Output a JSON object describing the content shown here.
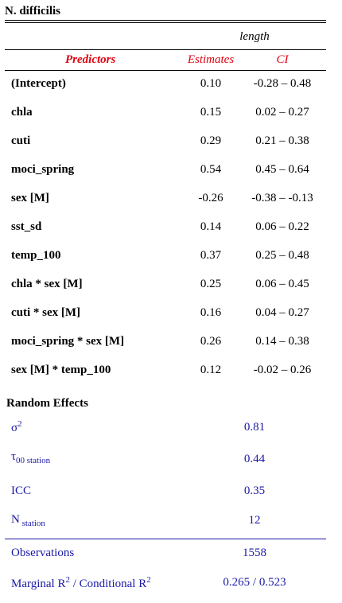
{
  "caption": "N. difficilis",
  "dependent_variable": "length",
  "headers": {
    "predictors": "Predictors",
    "estimates": "Estimates",
    "ci": "CI"
  },
  "rows": [
    {
      "predictor": "(Intercept)",
      "estimate": "0.10",
      "ci": "-0.28 – 0.48"
    },
    {
      "predictor": "chla",
      "estimate": "0.15",
      "ci": "0.02 – 0.27"
    },
    {
      "predictor": "cuti",
      "estimate": "0.29",
      "ci": "0.21 – 0.38"
    },
    {
      "predictor": "moci_spring",
      "estimate": "0.54",
      "ci": "0.45 – 0.64"
    },
    {
      "predictor": "sex [M]",
      "estimate": "-0.26",
      "ci": "-0.38 – -0.13"
    },
    {
      "predictor": "sst_sd",
      "estimate": "0.14",
      "ci": "0.06 – 0.22"
    },
    {
      "predictor": "temp_100",
      "estimate": "0.37",
      "ci": "0.25 – 0.48"
    },
    {
      "predictor": "chla * sex [M]",
      "estimate": "0.25",
      "ci": "0.06 – 0.45"
    },
    {
      "predictor": "cuti * sex [M]",
      "estimate": "0.16",
      "ci": "0.04 – 0.27"
    },
    {
      "predictor": "moci_spring * sex [M]",
      "estimate": "0.26",
      "ci": "0.14 – 0.38"
    },
    {
      "predictor": "sex [M] * temp_100",
      "estimate": "0.12",
      "ci": "-0.02 – 0.26"
    }
  ],
  "random_effects": {
    "title": "Random Effects",
    "sigma": {
      "symbol": "σ",
      "sup": "2",
      "value": "0.81"
    },
    "tau": {
      "symbol": "τ",
      "sub": "00 station",
      "value": "0.44"
    },
    "icc": {
      "label": "ICC",
      "value": "0.35"
    },
    "n": {
      "symbol": "N",
      "sub": " station",
      "value": "12"
    }
  },
  "fit": {
    "observations": {
      "label": "Observations",
      "value": "1558"
    },
    "r2": {
      "part1": "Marginal R",
      "sup1": "2",
      "part2": " / Conditional R",
      "sup2": "2",
      "value": "0.265 / 0.523"
    }
  }
}
